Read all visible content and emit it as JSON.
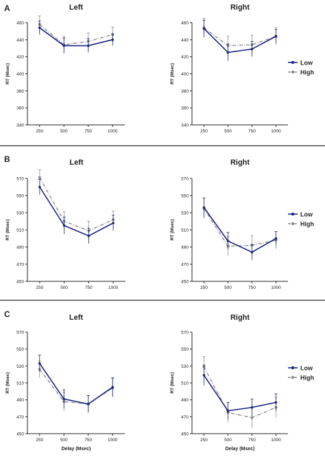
{
  "colors": {
    "low": "#1a237e",
    "high": "#8c8c8c",
    "axis": "#222222",
    "divider": "#333333"
  },
  "chart_data": [
    {
      "panel": "A",
      "title": "Left",
      "type": "line",
      "x": [
        "250",
        "500",
        "750",
        "1000"
      ],
      "ylabel": "RT (Msec)",
      "xlabel": "",
      "ylim": [
        340,
        460
      ],
      "yticks": [
        "340",
        "360",
        "380",
        "400",
        "420",
        "440",
        "460"
      ],
      "series": [
        {
          "name": "Low",
          "values": [
            454,
            433,
            433,
            440
          ],
          "errors": [
            8,
            9,
            8,
            7
          ]
        },
        {
          "name": "High",
          "values": [
            458,
            434,
            438,
            446
          ],
          "errors": [
            10,
            10,
            10,
            9
          ]
        }
      ]
    },
    {
      "panel": "A",
      "title": "Right",
      "type": "line",
      "x": [
        "250",
        "500",
        "750",
        "1000"
      ],
      "ylabel": "RT (Msec)",
      "xlabel": "",
      "ylim": [
        340,
        460
      ],
      "yticks": [
        "340",
        "360",
        "380",
        "400",
        "420",
        "440",
        "460"
      ],
      "series": [
        {
          "name": "Low",
          "values": [
            453,
            425,
            429,
            444
          ],
          "errors": [
            10,
            10,
            9,
            8
          ]
        },
        {
          "name": "High",
          "values": [
            454,
            433,
            434,
            444
          ],
          "errors": [
            11,
            11,
            11,
            10
          ]
        }
      ]
    },
    {
      "panel": "B",
      "title": "Left",
      "type": "line",
      "x": [
        "250",
        "500",
        "750",
        "1000"
      ],
      "ylabel": "RT (Msec)",
      "xlabel": "",
      "ylim": [
        450,
        570
      ],
      "yticks": [
        "450",
        "470",
        "490",
        "510",
        "530",
        "550",
        "570"
      ],
      "series": [
        {
          "name": "Low",
          "values": [
            560,
            515,
            503,
            518
          ],
          "errors": [
            9,
            10,
            9,
            9
          ]
        },
        {
          "name": "High",
          "values": [
            571,
            520,
            509,
            522
          ],
          "errors": [
            9,
            11,
            11,
            10
          ]
        }
      ]
    },
    {
      "panel": "B",
      "title": "Right",
      "type": "line",
      "x": [
        "250",
        "500",
        "750",
        "1000"
      ],
      "ylabel": "RT (Msec)",
      "xlabel": "",
      "ylim": [
        450,
        570
      ],
      "yticks": [
        "450",
        "470",
        "490",
        "510",
        "530",
        "550",
        "570"
      ],
      "series": [
        {
          "name": "Low",
          "values": [
            536,
            497,
            484,
            500
          ],
          "errors": [
            11,
            10,
            9,
            8
          ]
        },
        {
          "name": "High",
          "values": [
            535,
            491,
            492,
            498
          ],
          "errors": [
            12,
            11,
            11,
            10
          ]
        }
      ]
    },
    {
      "panel": "C",
      "title": "Left",
      "type": "line",
      "x": [
        "250",
        "500",
        "750",
        "1000"
      ],
      "ylabel": "RT (Msec)",
      "xlabel": "Delay (Msec)",
      "ylim": [
        450,
        570
      ],
      "yticks": [
        "450",
        "470",
        "490",
        "510",
        "530",
        "550",
        "570"
      ],
      "series": [
        {
          "name": "Low",
          "values": [
            533,
            491,
            485,
            505
          ],
          "errors": [
            10,
            11,
            10,
            11
          ]
        },
        {
          "name": "High",
          "values": [
            526,
            488,
            485,
            504
          ],
          "errors": [
            10,
            11,
            10,
            11
          ]
        }
      ]
    },
    {
      "panel": "C",
      "title": "Right",
      "type": "line",
      "x": [
        "250",
        "500",
        "750",
        "1000"
      ],
      "ylabel": "RT (Msec)",
      "xlabel": "Delay (Msec)",
      "ylim": [
        450,
        570
      ],
      "yticks": [
        "450",
        "470",
        "490",
        "510",
        "530",
        "550",
        "570"
      ],
      "series": [
        {
          "name": "Low",
          "values": [
            519,
            477,
            481,
            487
          ],
          "errors": [
            12,
            10,
            10,
            10
          ]
        },
        {
          "name": "High",
          "values": [
            529,
            475,
            469,
            481
          ],
          "errors": [
            12,
            12,
            12,
            12
          ]
        }
      ]
    }
  ]
}
